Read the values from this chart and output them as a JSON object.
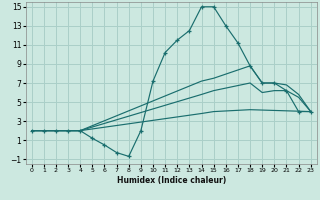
{
  "xlabel": "Humidex (Indice chaleur)",
  "background_color": "#cce8e0",
  "grid_color": "#aacfc8",
  "line_color": "#1a6e6e",
  "xlim": [
    -0.5,
    23.5
  ],
  "ylim": [
    -1.5,
    15.5
  ],
  "xticks": [
    0,
    1,
    2,
    3,
    4,
    5,
    6,
    7,
    8,
    9,
    10,
    11,
    12,
    13,
    14,
    15,
    16,
    17,
    18,
    19,
    20,
    21,
    22,
    23
  ],
  "yticks": [
    -1,
    1,
    3,
    5,
    7,
    9,
    11,
    13,
    15
  ],
  "lines": [
    {
      "x": [
        0,
        1,
        2,
        3,
        4,
        5,
        6,
        7,
        8,
        9,
        10,
        11,
        12,
        13,
        14,
        15,
        16,
        17,
        18,
        19,
        20,
        21,
        22,
        23
      ],
      "y": [
        2,
        2,
        2,
        2,
        2,
        1.2,
        0.5,
        -0.3,
        -0.7,
        2,
        7.2,
        10.2,
        11.5,
        12.5,
        15,
        15,
        13,
        11.2,
        8.8,
        7,
        7,
        6.2,
        4,
        4
      ],
      "marker": true
    },
    {
      "x": [
        0,
        1,
        2,
        3,
        4,
        14,
        15,
        18,
        19,
        20,
        21,
        22,
        23
      ],
      "y": [
        2,
        2,
        2,
        2,
        2,
        7.2,
        7.5,
        8.8,
        7,
        7,
        6.8,
        5.8,
        4
      ],
      "marker": false
    },
    {
      "x": [
        0,
        1,
        2,
        3,
        4,
        14,
        15,
        18,
        19,
        20,
        21,
        22,
        23
      ],
      "y": [
        2,
        2,
        2,
        2,
        2,
        5.8,
        6.2,
        7,
        6,
        6.2,
        6.2,
        5.5,
        4
      ],
      "marker": false
    },
    {
      "x": [
        0,
        1,
        2,
        3,
        4,
        14,
        15,
        18,
        23
      ],
      "y": [
        2,
        2,
        2,
        2,
        2,
        3.8,
        4.0,
        4.2,
        4
      ],
      "marker": false
    }
  ]
}
